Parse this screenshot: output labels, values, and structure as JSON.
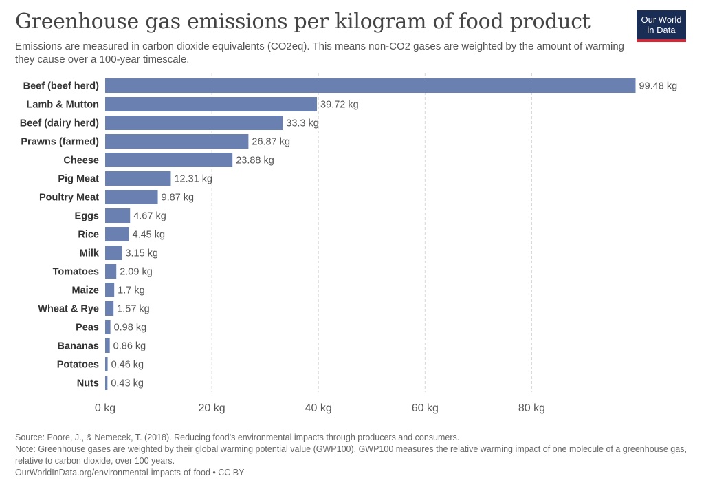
{
  "header": {
    "title": "Greenhouse gas emissions per kilogram of food product",
    "subtitle": "Emissions are measured in carbon dioxide equivalents (CO2eq). This means non-CO2 gases are weighted by the amount of warming they cause over a 100-year timescale."
  },
  "logo": {
    "line1": "Our World",
    "line2": "in Data",
    "bg_color": "#1a2e55",
    "accent_color": "#e0242f"
  },
  "chart_data": {
    "type": "bar",
    "orientation": "horizontal",
    "title": "Greenhouse gas emissions per kilogram of food product",
    "unit": "kg",
    "bar_color": "#6a80b0",
    "grid": true,
    "xlim": [
      0,
      100
    ],
    "xticks": [
      0,
      20,
      40,
      60,
      80
    ],
    "xtick_labels": [
      "0 kg",
      "20 kg",
      "40 kg",
      "60 kg",
      "80 kg"
    ],
    "categories": [
      "Beef (beef herd)",
      "Lamb & Mutton",
      "Beef (dairy herd)",
      "Prawns (farmed)",
      "Cheese",
      "Pig Meat",
      "Poultry Meat",
      "Eggs",
      "Rice",
      "Milk",
      "Tomatoes",
      "Maize",
      "Wheat & Rye",
      "Peas",
      "Bananas",
      "Potatoes",
      "Nuts"
    ],
    "values": [
      99.48,
      39.72,
      33.3,
      26.87,
      23.88,
      12.31,
      9.87,
      4.67,
      4.45,
      3.15,
      2.09,
      1.7,
      1.57,
      0.98,
      0.86,
      0.46,
      0.43
    ],
    "value_labels": [
      "99.48 kg",
      "39.72 kg",
      "33.3 kg",
      "26.87 kg",
      "23.88 kg",
      "12.31 kg",
      "9.87 kg",
      "4.67 kg",
      "4.45 kg",
      "3.15 kg",
      "2.09 kg",
      "1.7 kg",
      "1.57 kg",
      "0.98 kg",
      "0.86 kg",
      "0.46 kg",
      "0.43 kg"
    ]
  },
  "footer": {
    "source": "Source: Poore, J., & Nemecek, T. (2018). Reducing food's environmental impacts through producers and consumers.",
    "note": "Note: Greenhouse gases are weighted by their global warming potential value (GWP100). GWP100 measures the relative warming impact of one molecule of a greenhouse gas, relative to carbon dioxide, over 100 years.",
    "url": "OurWorldInData.org/environmental-impacts-of-food • CC BY"
  }
}
